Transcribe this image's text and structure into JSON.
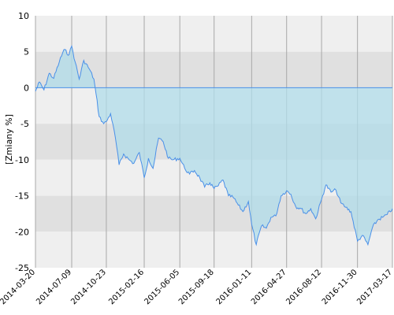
{
  "chart_data": {
    "type": "area",
    "xlabel": "",
    "ylabel": "[Zmiany %]",
    "ylim": [
      -25,
      10
    ],
    "yticks": [
      "10",
      "5",
      "0",
      "-5",
      "-10",
      "-15",
      "-20",
      "-25"
    ],
    "yticks_values": [
      10,
      5,
      0,
      -5,
      -10,
      -15,
      -20,
      -25
    ],
    "x_date_range": [
      "2014-03-20",
      "2017-03-17"
    ],
    "xticks": [
      "2014-03-20",
      "2014-07-09",
      "2014-10-23",
      "2015-02-16",
      "2015-06-05",
      "2015-09-18",
      "2016-01-11",
      "2016-04-27",
      "2016-08-12",
      "2016-11-30",
      "2017-03-17"
    ],
    "grid": true,
    "band_colors": [
      "#efefef",
      "#e0e0e0"
    ],
    "fill_color": "#b0dcea",
    "line_color": "#4a90e8",
    "series": [
      {
        "x": [
          "2014-03-20",
          "2014-04-01",
          "2014-04-15",
          "2014-05-01",
          "2014-05-15",
          "2014-06-01",
          "2014-06-15",
          "2014-07-01",
          "2014-07-09",
          "2014-07-20",
          "2014-08-01",
          "2014-08-15",
          "2014-09-01",
          "2014-09-15",
          "2014-10-01",
          "2014-10-15",
          "2014-10-23",
          "2014-11-05",
          "2014-11-20",
          "2014-12-01",
          "2014-12-15",
          "2015-01-01",
          "2015-01-15",
          "2015-02-01",
          "2015-02-16",
          "2015-03-01",
          "2015-03-15",
          "2015-04-01",
          "2015-04-15",
          "2015-05-01",
          "2015-05-15",
          "2015-06-05",
          "2015-06-20",
          "2015-07-05",
          "2015-07-20",
          "2015-08-05",
          "2015-08-20",
          "2015-09-05",
          "2015-09-18",
          "2015-10-01",
          "2015-10-15",
          "2015-11-01",
          "2015-11-15",
          "2015-12-01",
          "2015-12-15",
          "2016-01-01",
          "2016-01-11",
          "2016-01-25",
          "2016-02-10",
          "2016-02-25",
          "2016-03-10",
          "2016-03-25",
          "2016-04-10",
          "2016-04-27",
          "2016-05-10",
          "2016-05-25",
          "2016-06-10",
          "2016-06-25",
          "2016-07-10",
          "2016-07-25",
          "2016-08-12",
          "2016-08-25",
          "2016-09-10",
          "2016-09-25",
          "2016-10-10",
          "2016-10-25",
          "2016-11-10",
          "2016-11-30",
          "2016-12-15",
          "2017-01-01",
          "2017-01-15",
          "2017-02-01",
          "2017-02-15",
          "2017-03-01",
          "2017-03-17"
        ],
        "values": [
          -0.5,
          0.8,
          -0.3,
          2.0,
          1.3,
          3.6,
          5.3,
          4.6,
          5.8,
          3.5,
          1.2,
          3.8,
          2.6,
          1.2,
          -4.0,
          -5.0,
          -4.7,
          -3.6,
          -7.0,
          -10.7,
          -9.2,
          -10.0,
          -10.5,
          -9.0,
          -12.5,
          -9.8,
          -11.2,
          -7.0,
          -7.5,
          -9.8,
          -10.0,
          -9.8,
          -11.2,
          -12.0,
          -11.5,
          -12.5,
          -13.8,
          -13.2,
          -14.0,
          -13.6,
          -12.8,
          -15.0,
          -15.2,
          -16.3,
          -17.2,
          -15.8,
          -19.0,
          -21.8,
          -19.2,
          -19.5,
          -18.0,
          -17.8,
          -15.0,
          -14.3,
          -14.8,
          -16.5,
          -16.8,
          -17.5,
          -16.8,
          -18.2,
          -15.5,
          -13.5,
          -14.5,
          -14.2,
          -16.0,
          -16.6,
          -17.2,
          -21.3,
          -20.5,
          -21.8,
          -19.4,
          -18.3,
          -18.0,
          -17.6,
          -16.8
        ]
      }
    ]
  }
}
